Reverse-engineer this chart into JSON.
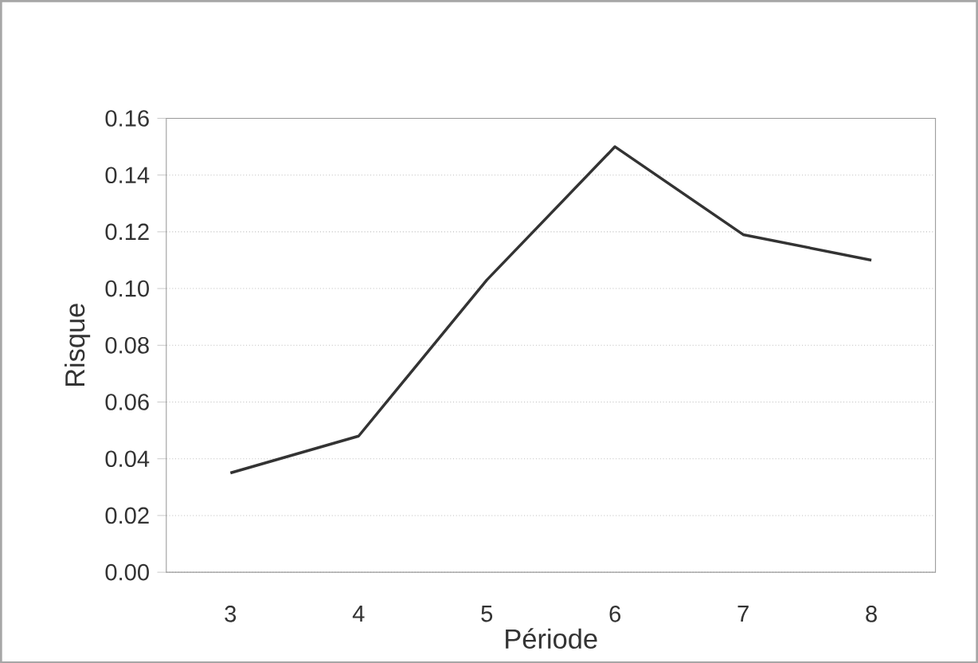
{
  "chart_data": {
    "type": "line",
    "xlabel": "Période",
    "ylabel": "Risque",
    "categories": [
      "3",
      "4",
      "5",
      "6",
      "7",
      "8"
    ],
    "values": [
      0.035,
      0.048,
      0.103,
      0.15,
      0.119,
      0.11
    ],
    "color": "#333333",
    "ylim": [
      0,
      0.16
    ],
    "yticks": [
      {
        "value": 0,
        "label": "0.00"
      },
      {
        "value": 0.02,
        "label": "0.02"
      },
      {
        "value": 0.04,
        "label": "0.04"
      },
      {
        "value": 0.06,
        "label": "0.06"
      },
      {
        "value": 0.08,
        "label": "0.08"
      },
      {
        "value": 0.1,
        "label": "0.10"
      },
      {
        "value": 0.12,
        "label": "0.12"
      },
      {
        "value": 0.14,
        "label": "0.14"
      },
      {
        "value": 0.16,
        "label": "0.16"
      }
    ],
    "grid": "y",
    "marker": "none",
    "line_style": "solid"
  }
}
